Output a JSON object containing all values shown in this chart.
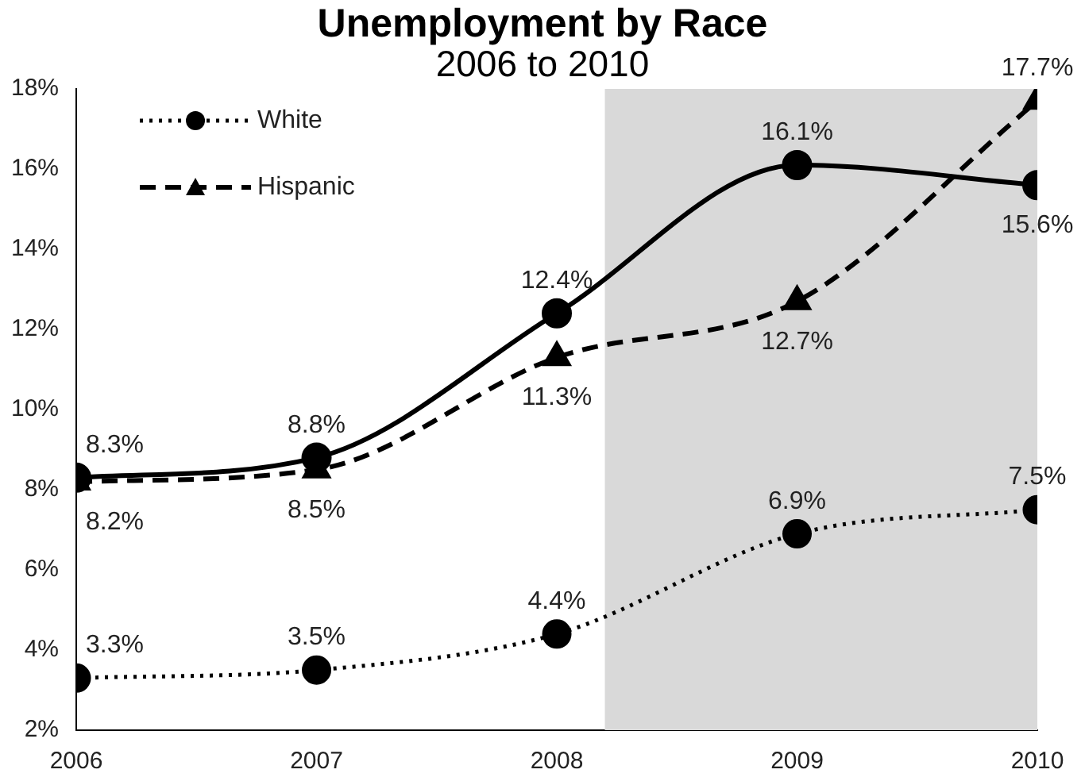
{
  "chart_data": {
    "type": "line",
    "title": "Unemployment by Race",
    "subtitle": "2006 to 2010",
    "x": [
      2006,
      2007,
      2008,
      2009,
      2010
    ],
    "series": [
      {
        "name": null,
        "color": "#000000",
        "values": [
          8.3,
          8.8,
          12.4,
          16.1,
          15.6
        ],
        "value_labels": [
          "8.3%",
          "8.8%",
          "12.4%",
          "16.1%",
          "15.6%"
        ],
        "marker": "circle",
        "line_style": "solid"
      },
      {
        "name": "White",
        "color": "#000000",
        "values": [
          3.3,
          3.5,
          4.4,
          6.9,
          7.5
        ],
        "value_labels": [
          "3.3%",
          "3.5%",
          "4.4%",
          "6.9%",
          "7.5%"
        ],
        "marker": "circle",
        "line_style": "dotted"
      },
      {
        "name": "Hispanic",
        "color": "#000000",
        "values": [
          8.2,
          8.5,
          11.3,
          12.7,
          17.7
        ],
        "value_labels": [
          "8.2%",
          "8.5%",
          "11.3%",
          "12.7%",
          "17.7%"
        ],
        "marker": "triangle",
        "line_style": "dashed"
      }
    ],
    "xlim": [
      2006,
      2010
    ],
    "xticks": [
      2006,
      2007,
      2008,
      2009,
      2010
    ],
    "ylim": [
      2,
      18
    ],
    "yticks": [
      {
        "value": 2,
        "label": "2%"
      },
      {
        "value": 4,
        "label": "4%"
      },
      {
        "value": 6,
        "label": "6%"
      },
      {
        "value": 8,
        "label": "8%"
      },
      {
        "value": 10,
        "label": "10%"
      },
      {
        "value": 12,
        "label": "12%"
      },
      {
        "value": 14,
        "label": "14%"
      },
      {
        "value": 16,
        "label": "16%"
      },
      {
        "value": 18,
        "label": "18%"
      }
    ],
    "bands": [
      {
        "axis": "x",
        "from": 2008.2,
        "to": 2010,
        "color": "#d9d9d9"
      }
    ],
    "grid": false,
    "legend": "top left"
  }
}
